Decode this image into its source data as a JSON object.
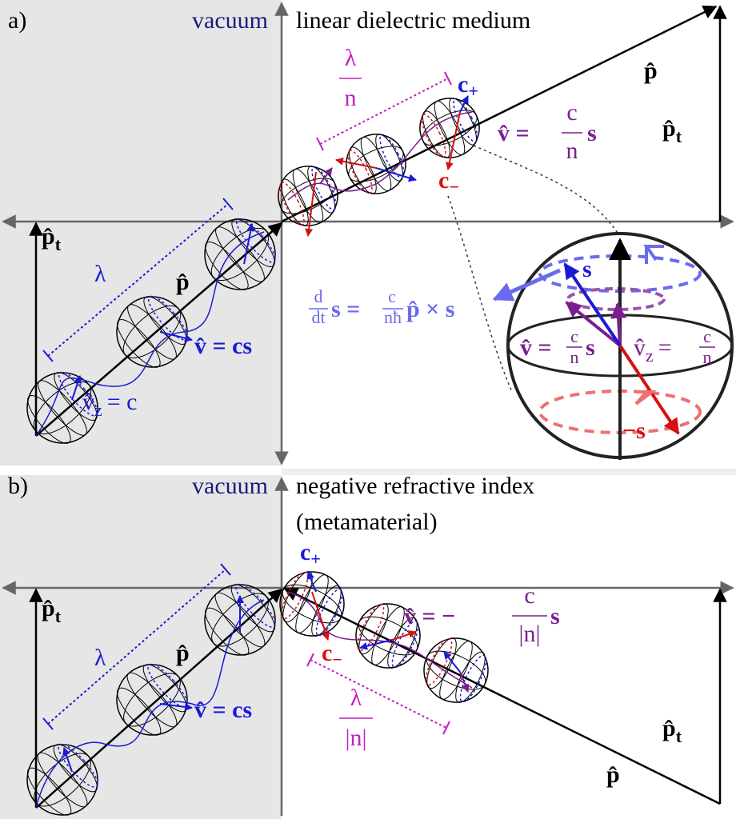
{
  "panel_a": {
    "label": "a)",
    "left_region": "vacuum",
    "right_region": "linear dielectric medium",
    "momentum_left": "p̂",
    "momentum_right": "p̂",
    "transverse_left": {
      "symbol": "p̂",
      "subscript": "t"
    },
    "transverse_right": {
      "symbol": "p̂",
      "subscript": "t"
    },
    "wavelength_left": "λ",
    "wavelength_right": {
      "numerator": "λ",
      "denominator": "n"
    },
    "helicity_plus": {
      "symbol": "c",
      "subscript": "+"
    },
    "helicity_minus": {
      "symbol": "c",
      "subscript": "−"
    },
    "velocity_right": {
      "lhs": "v̂ =",
      "numerator": "c",
      "denominator": "n",
      "rhs": "s"
    },
    "velocity_left": "v̂ = cs",
    "velocity_z_left": {
      "symbol": "v̂",
      "subscript": "z",
      "rhs": "= c"
    },
    "precession": {
      "d": "d",
      "dt": "dt",
      "lhs": "s =",
      "numerator": "c",
      "denominator": "nħ",
      "rhs": "p̂ × s"
    },
    "inset": {
      "spin": "s",
      "minus_spin": "−s",
      "velocity": {
        "lhs": "v̂ =",
        "numerator": "c",
        "denominator": "n",
        "rhs": "s"
      },
      "velocity_z": {
        "symbol": "v̂",
        "subscript": "z",
        "lhs": "=",
        "numerator": "c",
        "denominator": "n"
      }
    }
  },
  "panel_b": {
    "label": "b)",
    "left_region": "vacuum",
    "right_region": [
      "negative refractive index",
      "(metamaterial)"
    ],
    "momentum_left": "p̂",
    "momentum_right": "p̂",
    "transverse_left": {
      "symbol": "p̂",
      "subscript": "t"
    },
    "transverse_right": {
      "symbol": "p̂",
      "subscript": "t"
    },
    "wavelength_left": "λ",
    "wavelength_right": {
      "numerator": "λ",
      "denominator": "|n|"
    },
    "helicity_plus": {
      "symbol": "c",
      "subscript": "+"
    },
    "helicity_minus": {
      "symbol": "c",
      "subscript": "−"
    },
    "velocity_right": {
      "lhs": "v̂ = −",
      "numerator": "c",
      "denominator": "|n|",
      "rhs": "s"
    },
    "velocity_left": "v̂ = cs"
  }
}
